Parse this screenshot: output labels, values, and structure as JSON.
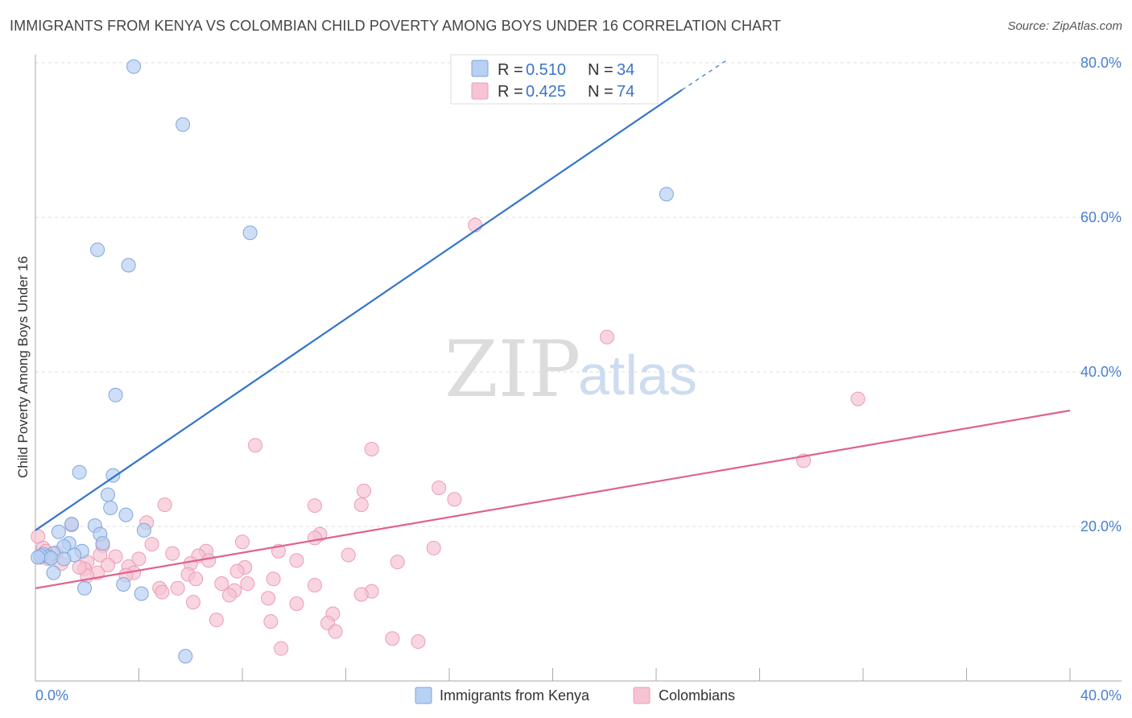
{
  "title": "IMMIGRANTS FROM KENYA VS COLOMBIAN CHILD POVERTY AMONG BOYS UNDER 16 CORRELATION CHART",
  "source": "Source: ZipAtlas.com",
  "colors": {
    "blue_fill": "#b8d0f2",
    "blue_stroke": "#7fa6de",
    "blue_line": "#3374cc",
    "pink_fill": "#f6c3d3",
    "pink_stroke": "#eb9db6",
    "pink_line": "#e0628e",
    "grid": "#dddddd",
    "tick_text": "#4a7fd0"
  },
  "watermark": {
    "zip": "ZIP",
    "atlas": "atlas"
  },
  "legend": {
    "rows": [
      {
        "r_label": "R = ",
        "r_value": "0.510",
        "n_label": "N = ",
        "n_value": "34"
      },
      {
        "r_label": "R = ",
        "r_value": "0.425",
        "n_label": "N = ",
        "n_value": "74"
      }
    ]
  },
  "bottom_legend": [
    "Immigrants from Kenya",
    "Colombians"
  ],
  "chart_data": {
    "type": "scatter",
    "title": "IMMIGRANTS FROM KENYA VS COLOMBIAN CHILD POVERTY AMONG BOYS UNDER 16 CORRELATION CHART",
    "xlabel": "",
    "ylabel": "Child Poverty Among Boys Under 16",
    "xlim": [
      0,
      40
    ],
    "ylim": [
      0,
      80
    ],
    "x_ticks": [
      0,
      40
    ],
    "x_tick_labels": [
      "0.0%",
      "40.0%"
    ],
    "y_ticks": [
      20,
      40,
      60,
      80
    ],
    "y_tick_labels": [
      "20.0%",
      "40.0%",
      "60.0%",
      "80.0%"
    ],
    "grid": true,
    "series": [
      {
        "name": "Immigrants from Kenya",
        "R": 0.51,
        "N": 34,
        "trend": {
          "x0": 0,
          "y0": 19.5,
          "x1": 25.0,
          "y1": 76.5,
          "dash_x1": 26.8,
          "dash_y1": 80.5
        },
        "points": [
          [
            3.8,
            79.5
          ],
          [
            5.7,
            72.0
          ],
          [
            8.3,
            58.0
          ],
          [
            24.4,
            63.0
          ],
          [
            2.4,
            55.8
          ],
          [
            3.6,
            53.8
          ],
          [
            3.1,
            37.0
          ],
          [
            1.7,
            27.0
          ],
          [
            3.0,
            26.6
          ],
          [
            2.8,
            24.1
          ],
          [
            2.9,
            22.4
          ],
          [
            3.5,
            21.5
          ],
          [
            1.4,
            20.3
          ],
          [
            2.3,
            20.1
          ],
          [
            4.2,
            19.5
          ],
          [
            0.9,
            19.3
          ],
          [
            2.5,
            19.0
          ],
          [
            1.3,
            17.8
          ],
          [
            1.1,
            17.4
          ],
          [
            2.6,
            17.8
          ],
          [
            1.8,
            16.8
          ],
          [
            0.7,
            16.5
          ],
          [
            1.5,
            16.3
          ],
          [
            0.3,
            16.4
          ],
          [
            0.5,
            16.1
          ],
          [
            0.2,
            16.2
          ],
          [
            0.6,
            15.9
          ],
          [
            1.1,
            15.8
          ],
          [
            0.1,
            16.0
          ],
          [
            0.7,
            14.0
          ],
          [
            1.9,
            12.0
          ],
          [
            3.4,
            12.5
          ],
          [
            4.1,
            11.3
          ],
          [
            5.8,
            3.2
          ]
        ]
      },
      {
        "name": "Colombians",
        "R": 0.425,
        "N": 74,
        "trend": {
          "x0": 0,
          "y0": 12.0,
          "x1": 40.0,
          "y1": 35.0
        },
        "points": [
          [
            17.0,
            59.0
          ],
          [
            22.1,
            44.5
          ],
          [
            31.8,
            36.5
          ],
          [
            29.7,
            28.5
          ],
          [
            8.5,
            30.5
          ],
          [
            13.0,
            30.0
          ],
          [
            15.6,
            25.0
          ],
          [
            12.7,
            24.6
          ],
          [
            16.2,
            23.5
          ],
          [
            5.0,
            22.8
          ],
          [
            10.8,
            22.7
          ],
          [
            12.6,
            22.8
          ],
          [
            4.3,
            20.5
          ],
          [
            1.4,
            20.2
          ],
          [
            11.0,
            19.0
          ],
          [
            10.8,
            18.5
          ],
          [
            8.0,
            18.0
          ],
          [
            4.5,
            17.7
          ],
          [
            2.6,
            17.5
          ],
          [
            15.4,
            17.2
          ],
          [
            9.4,
            16.8
          ],
          [
            6.6,
            16.8
          ],
          [
            5.3,
            16.5
          ],
          [
            6.3,
            16.2
          ],
          [
            2.5,
            16.3
          ],
          [
            12.1,
            16.3
          ],
          [
            3.1,
            16.1
          ],
          [
            4.0,
            15.8
          ],
          [
            10.1,
            15.6
          ],
          [
            14.0,
            15.4
          ],
          [
            2.0,
            15.4
          ],
          [
            0.5,
            15.8
          ],
          [
            0.2,
            16.0
          ],
          [
            2.8,
            15.0
          ],
          [
            3.6,
            14.8
          ],
          [
            1.9,
            14.5
          ],
          [
            6.0,
            15.2
          ],
          [
            6.7,
            15.6
          ],
          [
            8.1,
            14.7
          ],
          [
            7.8,
            14.2
          ],
          [
            3.8,
            14.0
          ],
          [
            2.4,
            14.0
          ],
          [
            5.9,
            13.8
          ],
          [
            2.0,
            13.6
          ],
          [
            3.5,
            13.7
          ],
          [
            9.2,
            13.2
          ],
          [
            6.2,
            13.2
          ],
          [
            7.2,
            12.6
          ],
          [
            8.2,
            12.6
          ],
          [
            10.8,
            12.4
          ],
          [
            4.8,
            12.0
          ],
          [
            5.5,
            12.0
          ],
          [
            7.7,
            11.7
          ],
          [
            13.0,
            11.6
          ],
          [
            12.6,
            11.2
          ],
          [
            4.9,
            11.5
          ],
          [
            7.5,
            11.1
          ],
          [
            9.0,
            10.7
          ],
          [
            6.1,
            10.2
          ],
          [
            10.1,
            10.0
          ],
          [
            11.5,
            8.7
          ],
          [
            7.0,
            7.9
          ],
          [
            9.1,
            7.7
          ],
          [
            11.3,
            7.5
          ],
          [
            11.6,
            6.4
          ],
          [
            13.8,
            5.5
          ],
          [
            14.8,
            5.1
          ],
          [
            9.5,
            4.2
          ],
          [
            0.1,
            18.7
          ],
          [
            0.3,
            17.2
          ],
          [
            0.8,
            16.6
          ],
          [
            1.0,
            15.2
          ],
          [
            0.4,
            16.8
          ],
          [
            1.7,
            14.7
          ]
        ]
      }
    ]
  }
}
